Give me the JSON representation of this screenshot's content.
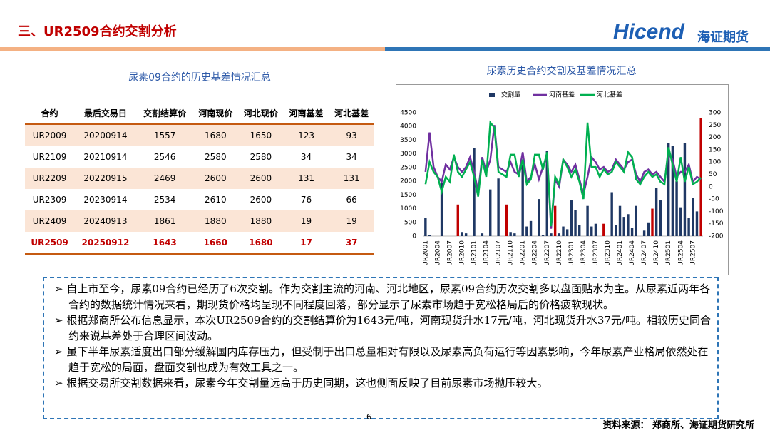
{
  "header": {
    "title": "三、UR2509合约交割分析",
    "logo": "Hicend",
    "logo_cn": "海证期货"
  },
  "table": {
    "title": "尿素09合约的历史基差情况汇总",
    "columns": [
      "合约",
      "最后交易日",
      "交割结算价",
      "河南现价",
      "河北现价",
      "河南基差",
      "河北基差"
    ],
    "rows": [
      [
        "UR2009",
        20200914,
        1557,
        1680,
        1650,
        123,
        93
      ],
      [
        "UR2109",
        20210914,
        2546,
        2580,
        2580,
        34,
        34
      ],
      [
        "UR2209",
        20220915,
        2469,
        2600,
        2600,
        131,
        131
      ],
      [
        "UR2309",
        20230914,
        2534,
        2610,
        2600,
        76,
        66
      ],
      [
        "UR2409",
        20240913,
        1861,
        1880,
        1880,
        19,
        19
      ],
      [
        "UR2509",
        20250912,
        1643,
        1660,
        1680,
        17,
        37
      ]
    ]
  },
  "chart_data": {
    "type": "bar",
    "title": "尿素历史合约交割及基差情况汇总",
    "categories": [
      "UR2001",
      null,
      null,
      "UR2004",
      null,
      null,
      "UR2007",
      null,
      null,
      "UR2010",
      null,
      null,
      "UR2101",
      null,
      null,
      "UR2104",
      null,
      null,
      "UR2107",
      null,
      null,
      "UR2110",
      null,
      null,
      "UR2201",
      null,
      null,
      "UR2204",
      null,
      null,
      "UR2207",
      null,
      null,
      "UR2210",
      null,
      null,
      "UR2301",
      null,
      null,
      "UR2304",
      null,
      null,
      "UR2307",
      null,
      null,
      "UR2310",
      null,
      null,
      "UR2401",
      null,
      null,
      "UR2404",
      null,
      null,
      "UR2407",
      null,
      null,
      "UR2410",
      null,
      null,
      "UR2501",
      null,
      null,
      "UR2504",
      null,
      null,
      "UR2507",
      null,
      null
    ],
    "series": [
      {
        "name": "交割量",
        "type": "bar",
        "color": "#1f3864",
        "values": [
          650,
          50,
          0,
          0,
          1950,
          0,
          0,
          0,
          1150,
          150,
          100,
          0,
          3200,
          0,
          100,
          0,
          1700,
          0,
          2100,
          0,
          1150,
          150,
          100,
          0,
          2600,
          350,
          550,
          0,
          1350,
          50,
          3100,
          100,
          1100,
          100,
          350,
          250,
          1300,
          950,
          400,
          0,
          1100,
          350,
          450,
          0,
          450,
          0,
          1600,
          400,
          1100,
          700,
          800,
          300,
          1100,
          0,
          200,
          500,
          1000,
          1750,
          1300,
          0,
          3400,
          3300,
          2000,
          1050,
          3400,
          650,
          1400,
          900,
          4300
        ],
        "colors": [
          "#1f3864",
          "#1f3864",
          "#1f3864",
          "#1f3864",
          "#1f3864",
          "#1f3864",
          "#1f3864",
          "#1f3864",
          "#c00000",
          "#1f3864",
          "#1f3864",
          "#1f3864",
          "#1f3864",
          "#1f3864",
          "#1f3864",
          "#1f3864",
          "#1f3864",
          "#1f3864",
          "#1f3864",
          "#1f3864",
          "#c00000",
          "#1f3864",
          "#1f3864",
          "#1f3864",
          "#1f3864",
          "#1f3864",
          "#1f3864",
          "#1f3864",
          "#1f3864",
          "#1f3864",
          "#1f3864",
          "#1f3864",
          "#c00000",
          "#1f3864",
          "#1f3864",
          "#1f3864",
          "#1f3864",
          "#1f3864",
          "#1f3864",
          "#1f3864",
          "#1f3864",
          "#1f3864",
          "#1f3864",
          "#1f3864",
          "#c00000",
          "#1f3864",
          "#1f3864",
          "#1f3864",
          "#1f3864",
          "#1f3864",
          "#1f3864",
          "#1f3864",
          "#1f3864",
          "#1f3864",
          "#1f3864",
          "#1f3864",
          "#c00000",
          "#1f3864",
          "#1f3864",
          "#1f3864",
          "#1f3864",
          "#1f3864",
          "#1f3864",
          "#1f3864",
          "#1f3864",
          "#1f3864",
          "#1f3864",
          "#1f3864",
          "#c00000"
        ]
      },
      {
        "name": "河南基差",
        "type": "line",
        "axis": "y2",
        "color": "#7030a0",
        "values": [
          60,
          220,
          80,
          40,
          20,
          90,
          70,
          120,
          80,
          60,
          80,
          120,
          60,
          -20,
          120,
          60,
          110,
          250,
          80,
          70,
          60,
          100,
          60,
          50,
          140,
          20,
          40,
          90,
          30,
          80,
          130,
          -170,
          30,
          0,
          110,
          90,
          60,
          90,
          30,
          -30,
          40,
          120,
          100,
          70,
          80,
          60,
          70,
          110,
          90,
          70,
          100,
          110,
          50,
          20,
          60,
          70,
          50,
          60,
          40,
          20,
          140,
          110,
          40,
          60,
          60,
          90,
          20,
          40,
          30
        ]
      },
      {
        "name": "河北基差",
        "type": "line",
        "axis": "y2",
        "color": "#00b050",
        "values": [
          10,
          100,
          60,
          40,
          -20,
          40,
          20,
          130,
          60,
          40,
          70,
          100,
          40,
          -40,
          110,
          40,
          260,
          240,
          60,
          50,
          40,
          130,
          130,
          40,
          110,
          10,
          30,
          130,
          130,
          70,
          140,
          -160,
          40,
          10,
          110,
          80,
          40,
          70,
          20,
          -50,
          260,
          80,
          80,
          40,
          70,
          50,
          60,
          100,
          80,
          60,
          140,
          120,
          30,
          10,
          40,
          60,
          40,
          50,
          20,
          10,
          160,
          90,
          20,
          120,
          20,
          80,
          10,
          20,
          37
        ]
      }
    ],
    "ylim": [
      0,
      4500
    ],
    "yticks": [
      0,
      500,
      1000,
      1500,
      2000,
      2500,
      3000,
      3500,
      4000,
      4500
    ],
    "y2lim": [
      -200,
      300
    ],
    "y2ticks": [
      -200,
      -150,
      -100,
      -50,
      0,
      50,
      100,
      150,
      200,
      250,
      300
    ],
    "grid": false
  },
  "notes": [
    "自上市至今，尿素09合约已经历了6次交割。作为交割主流的河南、河北地区，尿素09合约历次交割多以盘面贴水为主。从尿素近两年各合约的数据统计情况来看，期现货价格均呈现不同程度回落，部分显示了尿素市场趋于宽松格局后的价格疲软现状。",
    "根据郑商所公布信息显示，本次UR2509合约的交割结算价为1643元/吨，河南现货升水17元/吨，河北现货升水37元/吨。相较历史同合约来说基差处于合理区间波动。",
    "虽下半年尿素适度出口部分缓解国内库存压力，但受制于出口总量相对有限以及尿素高负荷运行等因素影响，今年尿素产业格局依然处在趋于宽松的局面，盘面交割也成为有效工具之一。",
    "根据交易所交割数据来看，尿素今年交割量远高于历史同期，这也侧面反映了目前尿素市场抛压较大。"
  ],
  "footer": {
    "page": 6,
    "source": "资料来源： 郑商所、海证期货研究所"
  }
}
